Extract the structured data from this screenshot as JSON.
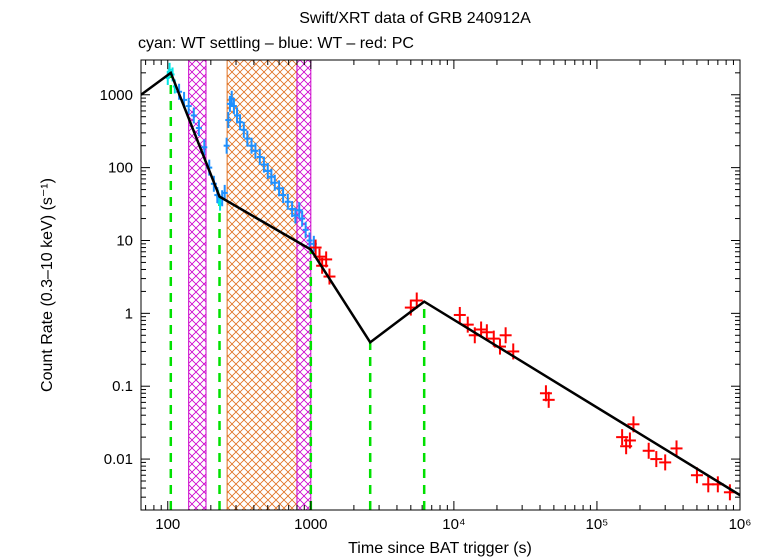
{
  "chart_data": {
    "type": "scatter",
    "title": "Swift/XRT data of GRB 240912A",
    "subtitle": "cyan: WT settling – blue: WT – red: PC",
    "xlabel": "Time since BAT trigger (s)",
    "ylabel": "Count Rate (0.3–10 keV) (s⁻¹)",
    "xscale": "log",
    "yscale": "log",
    "xlim": [
      65,
      1000000
    ],
    "ylim": [
      0.002,
      3000
    ],
    "x_ticks": [
      {
        "value": 100,
        "label": "100"
      },
      {
        "value": 1000,
        "label": "1000"
      },
      {
        "value": 10000,
        "label": "10⁴"
      },
      {
        "value": 100000,
        "label": "10⁵"
      },
      {
        "value": 1000000,
        "label": "10⁶"
      }
    ],
    "y_ticks": [
      {
        "value": 0.01,
        "label": "0.01"
      },
      {
        "value": 0.1,
        "label": "0.1"
      },
      {
        "value": 1,
        "label": "1"
      },
      {
        "value": 10,
        "label": "10"
      },
      {
        "value": 100,
        "label": "100"
      },
      {
        "value": 1000,
        "label": "1000"
      }
    ],
    "grid": false,
    "colors": {
      "wt_settling": "#00e5e5",
      "wt": "#1e90ff",
      "pc": "#ff0000",
      "model": "#000000",
      "breaks": "#00e000",
      "flare_hatch": "#e07020",
      "exclusion_hatch": "#cc00cc"
    },
    "model_fit": [
      [
        65,
        1000
      ],
      [
        105,
        2000
      ],
      [
        230,
        40
      ],
      [
        1000,
        7.5
      ],
      [
        2600,
        0.4
      ],
      [
        6200,
        1.45
      ],
      [
        1000000,
        0.0032
      ]
    ],
    "break_times": [
      105,
      230,
      1000,
      2600,
      6200
    ],
    "flare_interval": [
      260,
      800
    ],
    "exclusion_intervals": [
      [
        140,
        185
      ],
      [
        800,
        1000
      ]
    ],
    "wt_settling": [
      {
        "x": 100,
        "y": 1700
      },
      {
        "x": 103,
        "y": 2200
      },
      {
        "x": 108,
        "y": 1900
      },
      {
        "x": 112,
        "y": 1300
      },
      {
        "x": 225,
        "y": 40
      },
      {
        "x": 232,
        "y": 32
      }
    ],
    "wt": [
      {
        "x": 120,
        "y": 1100
      },
      {
        "x": 130,
        "y": 850
      },
      {
        "x": 140,
        "y": 700
      },
      {
        "x": 152,
        "y": 520
      },
      {
        "x": 165,
        "y": 350
      },
      {
        "x": 180,
        "y": 190
      },
      {
        "x": 195,
        "y": 100
      },
      {
        "x": 210,
        "y": 60
      },
      {
        "x": 222,
        "y": 42
      },
      {
        "x": 240,
        "y": 38
      },
      {
        "x": 250,
        "y": 45
      },
      {
        "x": 258,
        "y": 200
      },
      {
        "x": 265,
        "y": 450
      },
      {
        "x": 272,
        "y": 750
      },
      {
        "x": 280,
        "y": 880
      },
      {
        "x": 290,
        "y": 700
      },
      {
        "x": 305,
        "y": 520
      },
      {
        "x": 320,
        "y": 420
      },
      {
        "x": 340,
        "y": 330
      },
      {
        "x": 360,
        "y": 250
      },
      {
        "x": 385,
        "y": 200
      },
      {
        "x": 410,
        "y": 170
      },
      {
        "x": 440,
        "y": 140
      },
      {
        "x": 470,
        "y": 110
      },
      {
        "x": 500,
        "y": 90
      },
      {
        "x": 530,
        "y": 75
      },
      {
        "x": 560,
        "y": 62
      },
      {
        "x": 600,
        "y": 52
      },
      {
        "x": 640,
        "y": 42
      },
      {
        "x": 690,
        "y": 34
      },
      {
        "x": 740,
        "y": 27
      },
      {
        "x": 780,
        "y": 22
      },
      {
        "x": 830,
        "y": 26
      },
      {
        "x": 870,
        "y": 20
      },
      {
        "x": 920,
        "y": 14
      },
      {
        "x": 980,
        "y": 10
      },
      {
        "x": 1050,
        "y": 9
      }
    ],
    "pc": [
      {
        "x": 1080,
        "y": 8
      },
      {
        "x": 1150,
        "y": 6
      },
      {
        "x": 1200,
        "y": 4.5
      },
      {
        "x": 1280,
        "y": 5.5
      },
      {
        "x": 1350,
        "y": 3.2
      },
      {
        "x": 5000,
        "y": 1.2
      },
      {
        "x": 5500,
        "y": 1.5
      },
      {
        "x": 11000,
        "y": 0.95
      },
      {
        "x": 12500,
        "y": 0.7
      },
      {
        "x": 14000,
        "y": 0.5
      },
      {
        "x": 15500,
        "y": 0.6
      },
      {
        "x": 17000,
        "y": 0.55
      },
      {
        "x": 19000,
        "y": 0.45
      },
      {
        "x": 21000,
        "y": 0.35
      },
      {
        "x": 23000,
        "y": 0.5
      },
      {
        "x": 26000,
        "y": 0.3
      },
      {
        "x": 44000,
        "y": 0.08
      },
      {
        "x": 46000,
        "y": 0.065
      },
      {
        "x": 150000,
        "y": 0.02
      },
      {
        "x": 160000,
        "y": 0.015
      },
      {
        "x": 170000,
        "y": 0.018
      },
      {
        "x": 180000,
        "y": 0.03
      },
      {
        "x": 230000,
        "y": 0.013
      },
      {
        "x": 260000,
        "y": 0.01
      },
      {
        "x": 300000,
        "y": 0.009
      },
      {
        "x": 360000,
        "y": 0.014
      },
      {
        "x": 500000,
        "y": 0.006
      },
      {
        "x": 600000,
        "y": 0.0045
      },
      {
        "x": 700000,
        "y": 0.0045
      },
      {
        "x": 850000,
        "y": 0.0035
      }
    ]
  }
}
